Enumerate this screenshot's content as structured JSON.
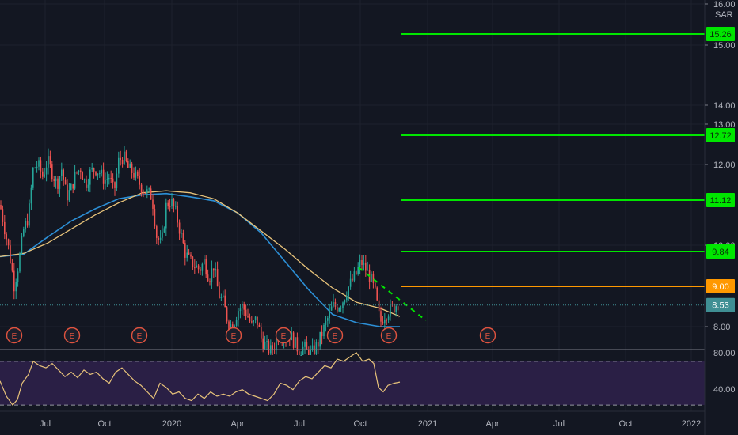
{
  "chart_data": {
    "type": "candlestick",
    "currency": "SAR",
    "price_axis": {
      "min": 7.3,
      "max": 16.0,
      "ticks": [
        "8.00",
        "10.00",
        "12.00",
        "13.00",
        "14.00",
        "15.00",
        "16.00"
      ]
    },
    "time_axis": {
      "labels": [
        "Jul",
        "Oct",
        "2020",
        "Apr",
        "Jul",
        "Oct",
        "2021",
        "Apr",
        "Jul",
        "Oct",
        "2022"
      ]
    },
    "last_price": "8.53",
    "horizontal_levels": [
      {
        "value": 15.26,
        "label": "15.26",
        "color": "#00e600"
      },
      {
        "value": 12.72,
        "label": "12.72",
        "color": "#00e600"
      },
      {
        "value": 11.12,
        "label": "11.12",
        "color": "#00e600"
      },
      {
        "value": 9.84,
        "label": "9.84",
        "color": "#00e600"
      },
      {
        "value": 9.0,
        "label": "9.00",
        "color": "#ff9800"
      }
    ],
    "price_path": [
      [
        0,
        11.0
      ],
      [
        6,
        10.4
      ],
      [
        12,
        9.8
      ],
      [
        18,
        9.0
      ],
      [
        24,
        9.6
      ],
      [
        30,
        10.4
      ],
      [
        36,
        10.7
      ],
      [
        42,
        11.9
      ],
      [
        48,
        12.0
      ],
      [
        54,
        11.7
      ],
      [
        60,
        12.1
      ],
      [
        66,
        11.8
      ],
      [
        72,
        11.5
      ],
      [
        78,
        11.9
      ],
      [
        84,
        11.2
      ],
      [
        90,
        11.4
      ],
      [
        96,
        11.8
      ],
      [
        102,
        11.9
      ],
      [
        108,
        11.5
      ],
      [
        114,
        11.8
      ],
      [
        120,
        11.9
      ],
      [
        126,
        11.8
      ],
      [
        132,
        11.6
      ],
      [
        138,
        11.7
      ],
      [
        144,
        11.3
      ],
      [
        150,
        12.1
      ],
      [
        156,
        12.2
      ],
      [
        162,
        11.9
      ],
      [
        168,
        11.8
      ],
      [
        174,
        11.6
      ],
      [
        180,
        11.4
      ],
      [
        186,
        11.3
      ],
      [
        192,
        11.2
      ],
      [
        198,
        10.2
      ],
      [
        204,
        10.0
      ],
      [
        210,
        11.0
      ],
      [
        216,
        11.1
      ],
      [
        222,
        10.8
      ],
      [
        228,
        10.3
      ],
      [
        234,
        9.8
      ],
      [
        240,
        9.6
      ],
      [
        246,
        9.5
      ],
      [
        252,
        9.4
      ],
      [
        258,
        9.6
      ],
      [
        264,
        9.2
      ],
      [
        270,
        9.5
      ],
      [
        276,
        8.8
      ],
      [
        282,
        8.6
      ],
      [
        288,
        8.1
      ],
      [
        294,
        8.0
      ],
      [
        300,
        8.4
      ],
      [
        306,
        8.5
      ],
      [
        312,
        8.3
      ],
      [
        318,
        8.0
      ],
      [
        324,
        8.2
      ],
      [
        330,
        7.7
      ],
      [
        336,
        7.5
      ],
      [
        342,
        7.4
      ],
      [
        348,
        7.6
      ],
      [
        354,
        7.9
      ],
      [
        360,
        7.7
      ],
      [
        366,
        7.8
      ],
      [
        372,
        7.6
      ],
      [
        378,
        7.4
      ],
      [
        384,
        7.5
      ],
      [
        390,
        7.3
      ],
      [
        396,
        7.4
      ],
      [
        402,
        7.6
      ],
      [
        408,
        7.9
      ],
      [
        414,
        8.2
      ],
      [
        420,
        8.5
      ],
      [
        426,
        8.5
      ],
      [
        432,
        8.6
      ],
      [
        438,
        8.9
      ],
      [
        444,
        9.1
      ],
      [
        450,
        9.3
      ],
      [
        456,
        9.6
      ],
      [
        462,
        9.4
      ],
      [
        468,
        9.2
      ],
      [
        474,
        8.8
      ],
      [
        480,
        8.1
      ],
      [
        486,
        8.3
      ],
      [
        492,
        8.4
      ],
      [
        498,
        8.5
      ],
      [
        504,
        8.6
      ]
    ],
    "moving_average_slow": [
      [
        0,
        9.72
      ],
      [
        30,
        9.78
      ],
      [
        60,
        10.2
      ],
      [
        90,
        10.6
      ],
      [
        120,
        10.9
      ],
      [
        150,
        11.15
      ],
      [
        180,
        11.25
      ],
      [
        210,
        11.28
      ],
      [
        240,
        11.2
      ],
      [
        270,
        11.1
      ],
      [
        300,
        10.8
      ],
      [
        330,
        10.3
      ],
      [
        360,
        9.6
      ],
      [
        390,
        8.9
      ],
      [
        420,
        8.3
      ],
      [
        450,
        8.1
      ],
      [
        480,
        8.0
      ],
      [
        505,
        8.0
      ]
    ],
    "moving_average_fast": [
      [
        0,
        9.72
      ],
      [
        30,
        9.8
      ],
      [
        60,
        10.05
      ],
      [
        90,
        10.4
      ],
      [
        120,
        10.75
      ],
      [
        150,
        11.05
      ],
      [
        180,
        11.3
      ],
      [
        210,
        11.35
      ],
      [
        240,
        11.3
      ],
      [
        270,
        11.15
      ],
      [
        300,
        10.8
      ],
      [
        330,
        10.35
      ],
      [
        360,
        9.9
      ],
      [
        390,
        9.4
      ],
      [
        420,
        8.95
      ],
      [
        450,
        8.6
      ],
      [
        480,
        8.45
      ],
      [
        505,
        8.25
      ]
    ],
    "trendline": {
      "from": [
        453,
        9.45
      ],
      "to": [
        538,
        8.15
      ],
      "style": "dashed",
      "color": "#00e600"
    },
    "earnings_markers": {
      "x": [
        18,
        91,
        176,
        295,
        358,
        423,
        491,
        616
      ],
      "label": "E"
    },
    "rsi": {
      "levels": [
        "80.00",
        "40.00"
      ],
      "range": [
        25,
        80
      ],
      "bands": [
        70,
        30
      ],
      "path": [
        [
          0,
          52
        ],
        [
          8,
          38
        ],
        [
          16,
          30
        ],
        [
          22,
          35
        ],
        [
          28,
          50
        ],
        [
          36,
          58
        ],
        [
          42,
          70
        ],
        [
          50,
          66
        ],
        [
          58,
          64
        ],
        [
          66,
          68
        ],
        [
          74,
          62
        ],
        [
          82,
          56
        ],
        [
          90,
          60
        ],
        [
          98,
          55
        ],
        [
          106,
          62
        ],
        [
          114,
          58
        ],
        [
          122,
          60
        ],
        [
          130,
          54
        ],
        [
          138,
          50
        ],
        [
          146,
          60
        ],
        [
          154,
          64
        ],
        [
          162,
          58
        ],
        [
          170,
          52
        ],
        [
          178,
          48
        ],
        [
          186,
          42
        ],
        [
          194,
          36
        ],
        [
          202,
          50
        ],
        [
          210,
          46
        ],
        [
          218,
          40
        ],
        [
          226,
          42
        ],
        [
          234,
          36
        ],
        [
          242,
          34
        ],
        [
          250,
          40
        ],
        [
          258,
          36
        ],
        [
          266,
          42
        ],
        [
          274,
          38
        ],
        [
          282,
          40
        ],
        [
          290,
          38
        ],
        [
          298,
          42
        ],
        [
          306,
          44
        ],
        [
          314,
          40
        ],
        [
          322,
          38
        ],
        [
          330,
          36
        ],
        [
          338,
          34
        ],
        [
          346,
          40
        ],
        [
          354,
          50
        ],
        [
          362,
          48
        ],
        [
          370,
          44
        ],
        [
          378,
          52
        ],
        [
          386,
          56
        ],
        [
          394,
          54
        ],
        [
          402,
          60
        ],
        [
          410,
          66
        ],
        [
          418,
          64
        ],
        [
          426,
          72
        ],
        [
          434,
          70
        ],
        [
          442,
          74
        ],
        [
          450,
          78
        ],
        [
          458,
          70
        ],
        [
          466,
          72
        ],
        [
          472,
          68
        ],
        [
          478,
          46
        ],
        [
          484,
          42
        ],
        [
          490,
          48
        ],
        [
          498,
          50
        ],
        [
          505,
          51
        ]
      ]
    }
  }
}
